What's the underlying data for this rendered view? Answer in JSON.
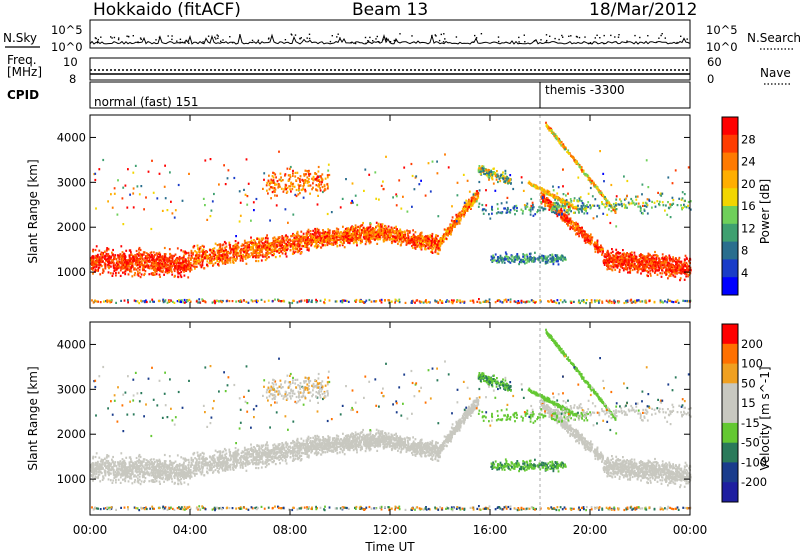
{
  "header": {
    "radar": "Hokkaido (fitACF)",
    "beam": "Beam 13",
    "date": "18/Mar/2012"
  },
  "noise_panel": {
    "left_label": "N.Sky",
    "left_ticks": [
      "10^5",
      "10^0"
    ],
    "right_ticks": [
      "10^5",
      "10^0"
    ],
    "right_label": "N.Search"
  },
  "freq_panel": {
    "left_label_1": "Freq.",
    "left_label_2": "[MHz]",
    "left_ticks": [
      "10",
      "8"
    ],
    "right_ticks": [
      "60",
      "0"
    ],
    "right_label": "Nave"
  },
  "cpid_panel": {
    "label": "CPID",
    "modes": [
      {
        "name": "normal (fast) 151",
        "start_hour": 0,
        "end_hour": 18.0
      },
      {
        "name": "themis -3300",
        "start_hour": 18.0,
        "end_hour": 24
      }
    ]
  },
  "colors": {
    "scale": [
      "#0000ff",
      "#1a3cc8",
      "#2a6e8e",
      "#3fa070",
      "#6fd05a",
      "#f2d600",
      "#ffae00",
      "#ff7a00",
      "#ff3c00",
      "#ff0000"
    ],
    "velocity": [
      "#1e1ea0",
      "#1a3c8c",
      "#2a7a5a",
      "#64c832",
      "#c8c8c0",
      "#c8c8c0",
      "#f0a020",
      "#ff7000",
      "#ff0000"
    ],
    "background": "#ffffff"
  },
  "chart_data": [
    {
      "type": "heatmap",
      "title": "",
      "xlabel": "Time UT",
      "ylabel": "Slant Range [km]",
      "x_ticks": [
        "00:00",
        "04:00",
        "08:00",
        "12:00",
        "16:00",
        "20:00",
        "00:00"
      ],
      "xlim": [
        0,
        24
      ],
      "y_ticks": [
        "1000",
        "2000",
        "3000",
        "4000"
      ],
      "ylim": [
        200,
        4500
      ],
      "colorbar_label": "Power [dB]",
      "colorbar_ticks": [
        "28",
        "24",
        "20",
        "16",
        "12",
        "8",
        "4"
      ],
      "colorbar_range": [
        0,
        30
      ],
      "scatter_bands": [
        {
          "x": [
            0,
            4
          ],
          "y_low": 800,
          "y_high": 1700,
          "level": 24
        },
        {
          "x": [
            4,
            8.5
          ],
          "y_low": 1000,
          "y_high": 1800,
          "level": 24
        },
        {
          "x": [
            8.5,
            11.5
          ],
          "y_low": 1400,
          "y_high": 2300,
          "level": 26
        },
        {
          "x": [
            11.5,
            14
          ],
          "y_low": 1200,
          "y_high": 2100,
          "level": 26
        },
        {
          "x": [
            14,
            15.5
          ],
          "y_low": 1700,
          "y_high": 2800,
          "level": 24
        },
        {
          "x": [
            16,
            19
          ],
          "y_low": 1000,
          "y_high": 1600,
          "level": 12
        },
        {
          "x": [
            18,
            20.5
          ],
          "y_low": 2300,
          "y_high": 4300,
          "level": 22
        },
        {
          "x": [
            20.5,
            24
          ],
          "y_low": 700,
          "y_high": 1500,
          "level": 26
        }
      ]
    },
    {
      "type": "heatmap",
      "title": "",
      "xlabel": "Time UT",
      "ylabel": "Slant Range [km]",
      "x_ticks": [
        "00:00",
        "04:00",
        "08:00",
        "12:00",
        "16:00",
        "20:00",
        "00:00"
      ],
      "xlim": [
        0,
        24
      ],
      "y_ticks": [
        "1000",
        "2000",
        "3000",
        "4000"
      ],
      "ylim": [
        200,
        4500
      ],
      "colorbar_label": "Velocity [m s^-1]",
      "colorbar_ticks": [
        "200",
        "100",
        "50",
        "15",
        "-15",
        "-50",
        "-100",
        "-200"
      ],
      "colorbar_range": [
        -250,
        250
      ]
    }
  ]
}
